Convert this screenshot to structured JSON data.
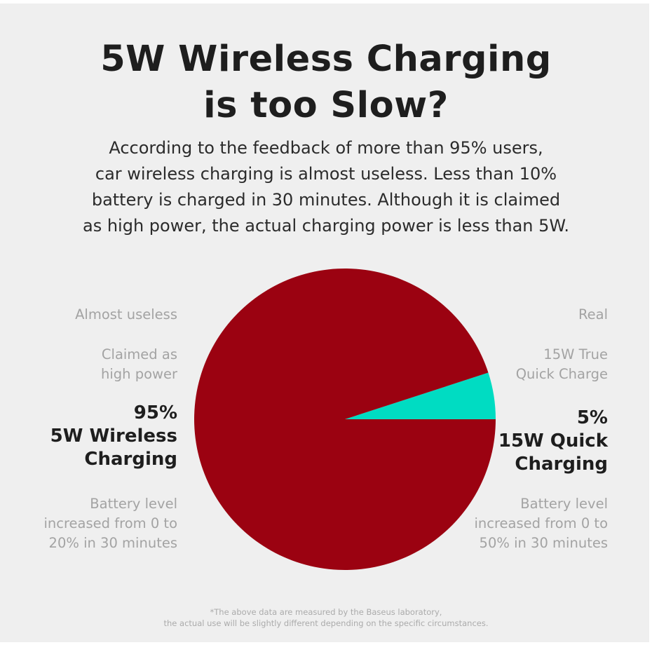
{
  "title": {
    "line1": "5W Wireless Charging",
    "line2": "is too Slow?"
  },
  "description": [
    "According to the feedback of more than 95% users,",
    "car wireless charging is almost useless. Less than 10%",
    "battery is charged in 30 minutes. Although it is claimed",
    "as high power, the actual charging power is less than 5W."
  ],
  "left": {
    "tag1": "Almost useless",
    "tag2_line1": "Claimed as",
    "tag2_line2": "high power",
    "percent": "95%",
    "name_line1": "5W Wireless",
    "name_line2": "Charging",
    "detail_line1": "Battery level",
    "detail_line2": "increased from 0 to",
    "detail_line3": "20% in 30 minutes"
  },
  "right": {
    "tag1": "Real",
    "tag2_line1": "15W True",
    "tag2_line2": "Quick Charge",
    "percent": "5%",
    "name_line1": "15W Quick",
    "name_line2": "Charging",
    "detail_line1": "Battery level",
    "detail_line2": "increased from 0 to",
    "detail_line3": "50% in 30 minutes"
  },
  "footnote": {
    "line1": "*The above data are measured by the Baseus laboratory,",
    "line2": "the actual use will be slightly different depending on the specific circumstances."
  },
  "colors": {
    "background": "#efefef",
    "wireless": "#9b0211",
    "quick": "#00dcc2"
  },
  "chart_data": {
    "type": "pie",
    "slices": [
      {
        "label": "5W Wireless Charging",
        "value": 95,
        "color": "#9b0211"
      },
      {
        "label": "15W Quick Charging",
        "value": 5,
        "color": "#00dcc2"
      }
    ],
    "start": "3 o'clock",
    "direction": "counter-clockwise"
  }
}
